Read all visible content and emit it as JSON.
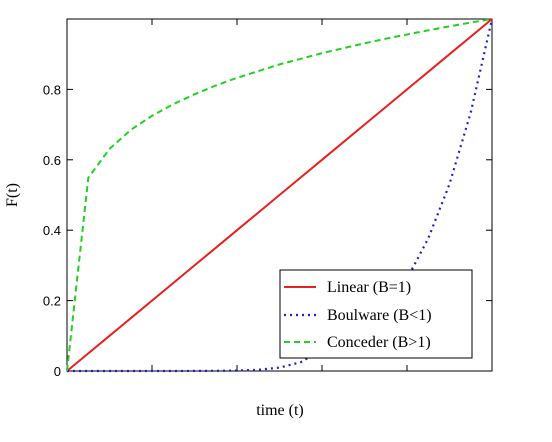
{
  "chart_data": {
    "type": "line",
    "xlabel": "time (t)",
    "ylabel": "F(t)",
    "xlim": [
      0,
      1
    ],
    "ylim": [
      0,
      1
    ],
    "x_ticks": [
      0,
      0.2,
      0.4,
      0.6,
      0.8,
      1.0
    ],
    "y_ticks": [
      0,
      0.2,
      0.4,
      0.6,
      0.8
    ],
    "y_tick_labels": [
      "0",
      "0.2",
      "0.4",
      "0.6",
      "0.8"
    ],
    "grid": false,
    "legend_position": "bottom-right",
    "x": [
      0,
      0.05,
      0.1,
      0.15,
      0.2,
      0.25,
      0.3,
      0.35,
      0.4,
      0.45,
      0.5,
      0.55,
      0.6,
      0.65,
      0.7,
      0.75,
      0.8,
      0.85,
      0.9,
      0.95,
      1.0
    ],
    "series": [
      {
        "name": "Linear (B=1)",
        "color": "#e8201e",
        "style": "solid",
        "values": [
          0,
          0.05,
          0.1,
          0.15,
          0.2,
          0.25,
          0.3,
          0.35,
          0.4,
          0.45,
          0.5,
          0.55,
          0.6,
          0.65,
          0.7,
          0.75,
          0.8,
          0.85,
          0.9,
          0.95,
          1.0
        ]
      },
      {
        "name": "Boulware (B<1)",
        "color": "#1f1fd0",
        "style": "dotted",
        "values": [
          0,
          0,
          0,
          0,
          0,
          0.0001,
          0.0002,
          0.0005,
          0.001,
          0.0034,
          0.0098,
          0.025,
          0.0605,
          0.0757,
          0.118,
          0.178,
          0.262,
          0.377,
          0.531,
          0.735,
          1.0
        ]
      },
      {
        "name": "Conceder (B>1)",
        "color": "#22d022",
        "style": "dashed",
        "values": [
          0,
          0.549,
          0.631,
          0.685,
          0.725,
          0.758,
          0.786,
          0.811,
          0.833,
          0.852,
          0.871,
          0.887,
          0.903,
          0.917,
          0.931,
          0.944,
          0.956,
          0.968,
          0.979,
          0.99,
          1.0
        ]
      }
    ]
  }
}
